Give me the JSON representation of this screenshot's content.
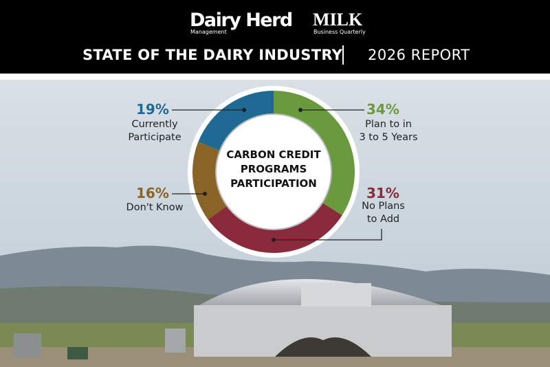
{
  "brand": {
    "name": "Dairy Herd",
    "sub": "Management",
    "name2": "MILK",
    "sub2": "Business Quarterly"
  },
  "header": {
    "title": "STATE OF THE DAIRY INDUSTRY",
    "report": "2026 REPORT"
  },
  "chart_data": {
    "type": "donut",
    "title": "CARBON CREDIT\nPROGRAMS\nPARTICIPATION",
    "categories": [
      "Plan to in\n3 to 5 Years",
      "No Plans\nto Add",
      "Don't Know",
      "Currently\nParticipate"
    ],
    "values": [
      34,
      31,
      16,
      19
    ],
    "value_labels": [
      "34%",
      "31%",
      "16%",
      "19%"
    ],
    "colors": [
      "#6a9a3e",
      "#8b2a3b",
      "#8a6426",
      "#1f6a94"
    ]
  }
}
